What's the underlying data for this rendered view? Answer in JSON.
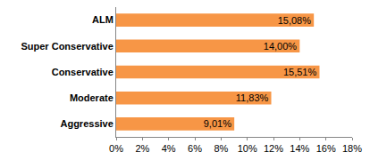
{
  "chart_data": {
    "type": "bar",
    "orientation": "horizontal",
    "categories": [
      "ALM",
      "Super Conservative",
      "Conservative",
      "Moderate",
      "Aggressive"
    ],
    "values": [
      15.08,
      14.0,
      15.51,
      11.83,
      9.01
    ],
    "value_labels": [
      "15,08%",
      "14,00%",
      "15,51%",
      "11,83%",
      "9,01%"
    ],
    "data_labels": true,
    "color": "#f79646",
    "xlim": [
      0,
      18
    ],
    "xticks": [
      {
        "value": 0,
        "label": "0%"
      },
      {
        "value": 2,
        "label": "2%"
      },
      {
        "value": 4,
        "label": "4%"
      },
      {
        "value": 6,
        "label": "6%"
      },
      {
        "value": 8,
        "label": "8%"
      },
      {
        "value": 10,
        "label": "10%"
      },
      {
        "value": 12,
        "label": "12%"
      },
      {
        "value": 14,
        "label": "14%"
      },
      {
        "value": 16,
        "label": "16%"
      },
      {
        "value": 18,
        "label": "18%"
      }
    ],
    "grid": false
  }
}
